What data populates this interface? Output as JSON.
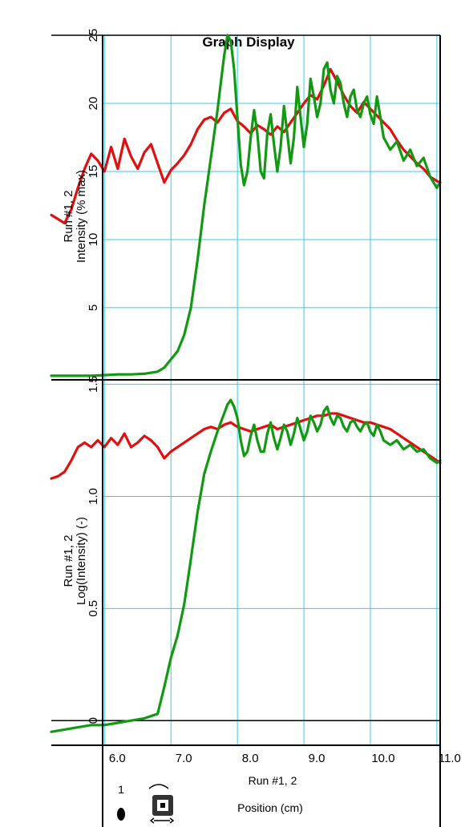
{
  "chart_data": {
    "title": "Graph Display",
    "type": "line",
    "x_axis": {
      "label_line1": "Run #1, 2",
      "label_line2": "Position (cm)",
      "range": [
        5.2,
        11.05
      ],
      "ticks": [
        6.0,
        7.0,
        8.0,
        9.0,
        10.0,
        11.0
      ],
      "tick_labels": [
        "6.0",
        "7.0",
        "8.0",
        "9.0",
        "10.0",
        "11.0"
      ]
    },
    "grid": true,
    "series_colors": [
      "#e01010",
      "#119911"
    ],
    "panels": [
      {
        "id": "intensity",
        "ylabel_line1": "Run #1, 2",
        "ylabel_line2": "Intensity (% max)",
        "ylim": [
          -0.3,
          25
        ],
        "yticks": [
          5,
          10,
          15,
          20,
          25
        ],
        "ytick_labels": [
          "5",
          "10",
          "15",
          "20",
          "25"
        ],
        "series": [
          {
            "color": "#e01010",
            "x": [
              5.2,
              5.3,
              5.4,
              5.5,
              5.6,
              5.7,
              5.8,
              5.9,
              6.0,
              6.1,
              6.2,
              6.3,
              6.4,
              6.5,
              6.6,
              6.7,
              6.8,
              6.9,
              7.0,
              7.1,
              7.2,
              7.3,
              7.4,
              7.5,
              7.6,
              7.7,
              7.8,
              7.9,
              8.0,
              8.1,
              8.2,
              8.3,
              8.4,
              8.5,
              8.6,
              8.7,
              8.8,
              8.9,
              9.0,
              9.1,
              9.2,
              9.3,
              9.4,
              9.5,
              9.6,
              9.7,
              9.8,
              9.9,
              10.0,
              10.1,
              10.2,
              10.3,
              10.4,
              10.5,
              10.6,
              10.7,
              10.8,
              10.9,
              11.0,
              11.05
            ],
            "y": [
              11.8,
              11.5,
              11.2,
              12.2,
              13.8,
              15.2,
              16.3,
              15.8,
              15.0,
              16.8,
              15.2,
              17.4,
              16.1,
              15.2,
              16.4,
              17.0,
              15.6,
              14.2,
              15.1,
              15.6,
              16.2,
              17.0,
              18.1,
              18.8,
              19.0,
              18.6,
              19.3,
              19.6,
              18.7,
              18.3,
              17.8,
              18.4,
              18.1,
              17.7,
              18.3,
              17.9,
              18.6,
              19.3,
              20.0,
              20.6,
              20.3,
              21.3,
              22.5,
              21.6,
              20.6,
              19.8,
              19.3,
              20.1,
              19.6,
              19.1,
              18.6,
              18.1,
              17.3,
              16.6,
              16.1,
              15.6,
              15.2,
              14.6,
              14.3,
              14.2
            ]
          },
          {
            "color": "#119911",
            "x": [
              5.2,
              5.4,
              5.6,
              5.8,
              6.0,
              6.2,
              6.4,
              6.6,
              6.8,
              6.9,
              7.0,
              7.1,
              7.2,
              7.3,
              7.4,
              7.5,
              7.6,
              7.7,
              7.75,
              7.8,
              7.85,
              7.9,
              7.95,
              8.0,
              8.05,
              8.1,
              8.15,
              8.2,
              8.25,
              8.3,
              8.35,
              8.4,
              8.45,
              8.5,
              8.55,
              8.6,
              8.65,
              8.7,
              8.75,
              8.8,
              8.85,
              8.9,
              8.95,
              9.0,
              9.05,
              9.1,
              9.15,
              9.2,
              9.25,
              9.3,
              9.35,
              9.4,
              9.45,
              9.5,
              9.55,
              9.6,
              9.65,
              9.7,
              9.75,
              9.8,
              9.85,
              9.9,
              9.95,
              10.0,
              10.05,
              10.1,
              10.15,
              10.2,
              10.3,
              10.4,
              10.5,
              10.6,
              10.7,
              10.8,
              10.9,
              11.0,
              11.05
            ],
            "y": [
              0.0,
              0.0,
              0.0,
              0.0,
              0.05,
              0.1,
              0.1,
              0.15,
              0.3,
              0.6,
              1.2,
              1.8,
              3.0,
              5.0,
              8.5,
              12.5,
              16.0,
              19.5,
              21.5,
              23.5,
              25.0,
              24.6,
              22.5,
              19.0,
              15.5,
              14.0,
              15.0,
              17.5,
              19.5,
              17.8,
              15.0,
              14.5,
              17.8,
              19.2,
              17.0,
              15.0,
              16.8,
              19.8,
              17.8,
              15.6,
              17.5,
              21.2,
              19.0,
              16.8,
              18.5,
              21.8,
              20.5,
              19.0,
              20.0,
              22.5,
              23.0,
              21.0,
              20.0,
              22.0,
              21.5,
              20.0,
              19.0,
              20.5,
              21.0,
              19.5,
              19.0,
              20.0,
              20.5,
              19.2,
              18.5,
              20.5,
              19.0,
              17.5,
              16.6,
              17.2,
              15.8,
              16.6,
              15.4,
              16.0,
              14.6,
              13.8,
              14.2
            ]
          }
        ]
      },
      {
        "id": "log-intensity",
        "ylabel_line1": "Run #1, 2",
        "ylabel_line2": "Log(Intensity) (-)",
        "ylim": [
          -0.11,
          1.52
        ],
        "yticks": [
          0,
          0.5,
          1.0,
          1.5
        ],
        "ytick_labels": [
          "0",
          "0.5",
          "1.0",
          "1.5"
        ],
        "series": [
          {
            "color": "#e01010",
            "x": [
              5.2,
              5.3,
              5.4,
              5.5,
              5.6,
              5.7,
              5.8,
              5.9,
              6.0,
              6.1,
              6.2,
              6.3,
              6.4,
              6.5,
              6.6,
              6.7,
              6.8,
              6.9,
              7.0,
              7.1,
              7.2,
              7.3,
              7.4,
              7.5,
              7.6,
              7.7,
              7.8,
              7.9,
              8.0,
              8.1,
              8.2,
              8.3,
              8.4,
              8.5,
              8.6,
              8.7,
              8.8,
              8.9,
              9.0,
              9.1,
              9.2,
              9.3,
              9.4,
              9.5,
              9.6,
              9.7,
              9.8,
              9.9,
              10.0,
              10.1,
              10.2,
              10.3,
              10.4,
              10.5,
              10.6,
              10.7,
              10.8,
              10.9,
              11.0,
              11.05
            ],
            "y": [
              1.08,
              1.09,
              1.11,
              1.16,
              1.22,
              1.24,
              1.22,
              1.25,
              1.22,
              1.26,
              1.23,
              1.28,
              1.22,
              1.24,
              1.27,
              1.25,
              1.22,
              1.17,
              1.2,
              1.22,
              1.24,
              1.26,
              1.28,
              1.3,
              1.31,
              1.3,
              1.32,
              1.33,
              1.31,
              1.3,
              1.29,
              1.3,
              1.31,
              1.32,
              1.3,
              1.31,
              1.32,
              1.33,
              1.34,
              1.35,
              1.36,
              1.36,
              1.37,
              1.37,
              1.36,
              1.35,
              1.34,
              1.33,
              1.33,
              1.32,
              1.31,
              1.3,
              1.28,
              1.26,
              1.24,
              1.22,
              1.2,
              1.18,
              1.16,
              1.15
            ]
          },
          {
            "color": "#119911",
            "x": [
              5.2,
              5.4,
              5.6,
              5.8,
              6.0,
              6.2,
              6.4,
              6.6,
              6.8,
              6.9,
              7.0,
              7.1,
              7.2,
              7.3,
              7.4,
              7.5,
              7.6,
              7.7,
              7.75,
              7.8,
              7.85,
              7.9,
              7.95,
              8.0,
              8.05,
              8.1,
              8.15,
              8.2,
              8.25,
              8.3,
              8.35,
              8.4,
              8.45,
              8.5,
              8.55,
              8.6,
              8.65,
              8.7,
              8.75,
              8.8,
              8.85,
              8.9,
              8.95,
              9.0,
              9.05,
              9.1,
              9.15,
              9.2,
              9.25,
              9.3,
              9.35,
              9.4,
              9.45,
              9.5,
              9.55,
              9.6,
              9.65,
              9.7,
              9.75,
              9.8,
              9.85,
              9.9,
              9.95,
              10.0,
              10.05,
              10.1,
              10.15,
              10.2,
              10.3,
              10.4,
              10.5,
              10.6,
              10.7,
              10.8,
              10.9,
              11.0,
              11.05
            ],
            "y": [
              -0.05,
              -0.04,
              -0.03,
              -0.02,
              -0.02,
              -0.01,
              0.0,
              0.01,
              0.03,
              0.15,
              0.28,
              0.38,
              0.52,
              0.72,
              0.93,
              1.1,
              1.2,
              1.29,
              1.33,
              1.37,
              1.41,
              1.43,
              1.4,
              1.35,
              1.25,
              1.18,
              1.2,
              1.27,
              1.32,
              1.25,
              1.2,
              1.2,
              1.28,
              1.33,
              1.26,
              1.21,
              1.26,
              1.32,
              1.29,
              1.23,
              1.28,
              1.35,
              1.3,
              1.25,
              1.29,
              1.36,
              1.33,
              1.29,
              1.32,
              1.38,
              1.4,
              1.35,
              1.32,
              1.36,
              1.35,
              1.31,
              1.29,
              1.33,
              1.34,
              1.31,
              1.29,
              1.32,
              1.33,
              1.29,
              1.27,
              1.32,
              1.29,
              1.25,
              1.23,
              1.25,
              1.21,
              1.23,
              1.2,
              1.21,
              1.17,
              1.15,
              1.16
            ]
          }
        ]
      }
    ]
  },
  "controls": {
    "item_number": "1"
  }
}
